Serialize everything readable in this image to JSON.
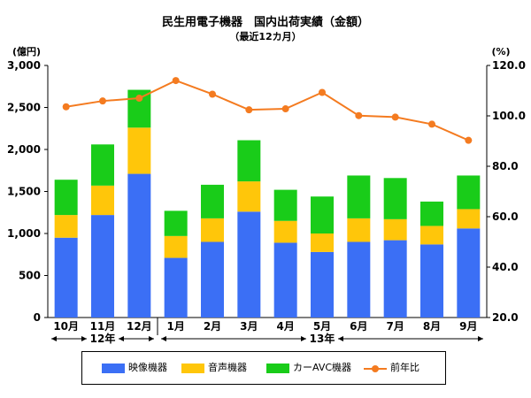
{
  "chart_data": {
    "type": "bar",
    "title": "民生用電子機器　国内出荷実績（金額）",
    "subtitle": "（最近12カ月）",
    "ylabel_left": "(億円)",
    "ylabel_right": "(%)",
    "categories": [
      "10月",
      "11月",
      "12月",
      "1月",
      "2月",
      "3月",
      "4月",
      "5月",
      "6月",
      "7月",
      "8月",
      "9月"
    ],
    "year_groups": [
      {
        "label": "12年",
        "from": 0,
        "to": 2
      },
      {
        "label": "13年",
        "from": 3,
        "to": 11
      }
    ],
    "series": [
      {
        "name": "映像機器",
        "color": "#3B6FF5",
        "values": [
          950,
          1220,
          1710,
          710,
          900,
          1260,
          890,
          780,
          900,
          920,
          870,
          1060
        ]
      },
      {
        "name": "音声機器",
        "color": "#FFC60A",
        "values": [
          270,
          350,
          550,
          260,
          280,
          360,
          260,
          220,
          280,
          250,
          220,
          230
        ]
      },
      {
        "name": "カーAVC機器",
        "color": "#19CC19",
        "values": [
          420,
          490,
          450,
          300,
          400,
          490,
          370,
          440,
          510,
          490,
          290,
          400
        ]
      }
    ],
    "line_series": {
      "name": "前年比",
      "color": "#F47B20",
      "values": [
        103.6,
        105.9,
        107.0,
        114.0,
        108.6,
        102.4,
        102.8,
        109.3,
        100.1,
        99.5,
        96.7,
        90.3
      ]
    },
    "ylim_left": [
      0,
      3000
    ],
    "yticks_left": [
      "0",
      "500",
      "1,000",
      "1,500",
      "2,000",
      "2,500",
      "3,000"
    ],
    "ylim_right": [
      20,
      120
    ],
    "yticks_right": [
      "20.0",
      "40.0",
      "60.0",
      "80.0",
      "100.0",
      "120.0"
    ],
    "grid": false,
    "legend_position": "bottom"
  }
}
